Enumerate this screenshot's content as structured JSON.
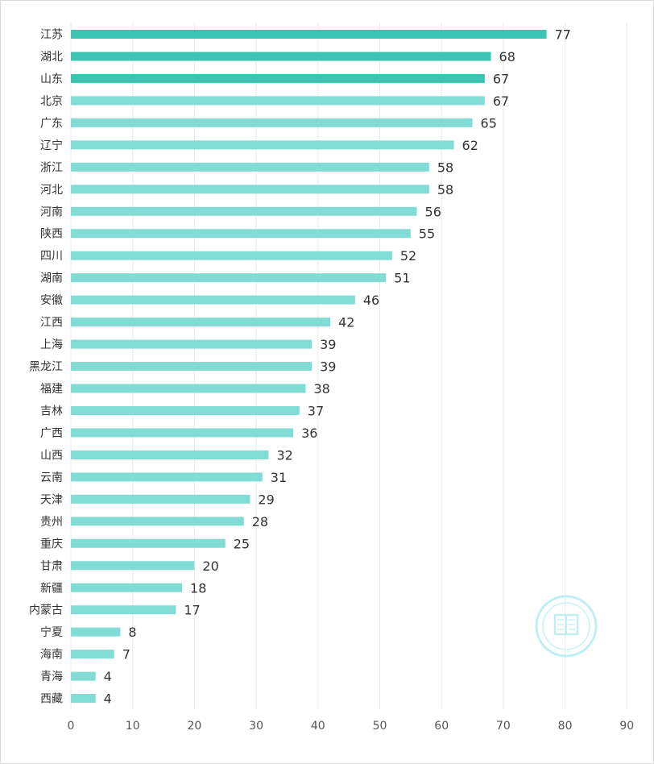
{
  "chart_data": {
    "type": "bar",
    "orientation": "horizontal",
    "categories": [
      "江苏",
      "湖北",
      "山东",
      "北京",
      "广东",
      "辽宁",
      "浙江",
      "河北",
      "河南",
      "陕西",
      "四川",
      "湖南",
      "安徽",
      "江西",
      "上海",
      "黑龙江",
      "福建",
      "吉林",
      "广西",
      "山西",
      "云南",
      "天津",
      "贵州",
      "重庆",
      "甘肃",
      "新疆",
      "内蒙古",
      "宁夏",
      "海南",
      "青海",
      "西藏"
    ],
    "values": [
      77,
      68,
      67,
      67,
      65,
      62,
      58,
      58,
      56,
      55,
      52,
      51,
      46,
      42,
      39,
      39,
      38,
      37,
      36,
      32,
      31,
      29,
      28,
      25,
      20,
      18,
      17,
      8,
      7,
      4,
      4
    ],
    "highlighted_top": 3,
    "xlim": [
      0,
      90
    ],
    "xticks": [
      0,
      10,
      20,
      30,
      40,
      50,
      60,
      70,
      80,
      90
    ],
    "grid": "vertical",
    "title": "",
    "xlabel": "",
    "ylabel": "",
    "colors": {
      "highlight": "#3cc3b1",
      "normal": "#82dcd6"
    }
  }
}
